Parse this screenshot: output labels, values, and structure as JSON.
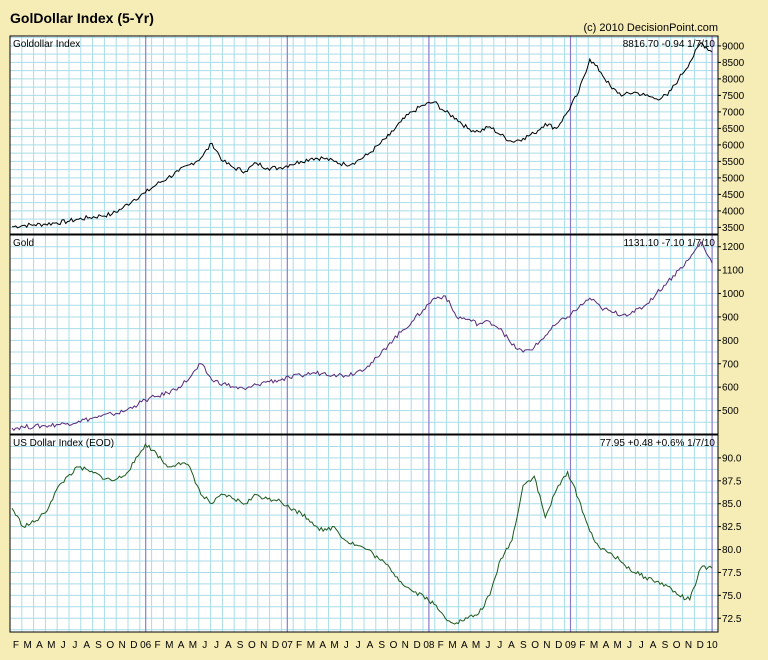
{
  "header": {
    "title": "GolDollar Index (5-Yr)",
    "copyright": "(c) 2010 DecisionPoint.com"
  },
  "colors": {
    "background": "#f6ecb6",
    "plot_bg": "#ffffff",
    "grid": "#a8dde8",
    "year_line": "#8a7ccc",
    "goldollar_line": "#000000",
    "gold_line": "#5a2a7a",
    "dollar_line": "#1e5a1e"
  },
  "x_axis": {
    "month_labels": [
      "F",
      "M",
      "A",
      "M",
      "J",
      "J",
      "A",
      "S",
      "O",
      "N",
      "D",
      "06",
      "F",
      "M",
      "A",
      "M",
      "J",
      "J",
      "A",
      "S",
      "O",
      "N",
      "D",
      "07",
      "F",
      "M",
      "A",
      "M",
      "J",
      "J",
      "A",
      "S",
      "O",
      "N",
      "D",
      "08",
      "F",
      "M",
      "A",
      "M",
      "J",
      "J",
      "A",
      "S",
      "O",
      "N",
      "D",
      "09",
      "F",
      "M",
      "A",
      "M",
      "J",
      "J",
      "A",
      "S",
      "O",
      "N",
      "D",
      "10"
    ]
  },
  "chart_data": [
    {
      "type": "line",
      "title": "Goldollar Index",
      "readout": "8816.70  -0.94  1/7/10",
      "ylim": [
        3300,
        9300
      ],
      "yticks": [
        "3500",
        "4000",
        "4500",
        "5000",
        "5500",
        "6000",
        "6500",
        "7000",
        "7500",
        "8000",
        "8500",
        "9000"
      ],
      "series": [
        {
          "values": [
            3520,
            3560,
            3580,
            3600,
            3640,
            3680,
            3750,
            3800,
            3850,
            3900,
            4100,
            4350,
            4550,
            4800,
            5000,
            5200,
            5400,
            5600,
            6050,
            5500,
            5300,
            5200,
            5450,
            5300,
            5300,
            5400,
            5500,
            5600,
            5600,
            5500,
            5400,
            5500,
            5700,
            6000,
            6300,
            6700,
            7000,
            7200,
            7300,
            7000,
            6800,
            6500,
            6400,
            6550,
            6300,
            6100,
            6200,
            6350,
            6650,
            6500,
            7000,
            7600,
            8600,
            8200,
            7700,
            7500,
            7600,
            7500,
            7400,
            7500,
            8000,
            8500,
            9100,
            8816
          ]
        }
      ]
    },
    {
      "type": "line",
      "title": "Gold",
      "readout": "1131.10  -7.10  1/7/10",
      "ylim": [
        400,
        1250
      ],
      "yticks": [
        "500",
        "600",
        "700",
        "800",
        "900",
        "1000",
        "1100",
        "1200"
      ],
      "series": [
        {
          "values": [
            425,
            430,
            432,
            435,
            440,
            445,
            455,
            465,
            475,
            485,
            495,
            520,
            545,
            560,
            575,
            600,
            640,
            700,
            630,
            615,
            600,
            590,
            610,
            625,
            630,
            640,
            650,
            660,
            660,
            655,
            650,
            665,
            690,
            730,
            790,
            835,
            880,
            930,
            980,
            990,
            900,
            890,
            870,
            880,
            850,
            780,
            750,
            770,
            820,
            870,
            900,
            940,
            980,
            940,
            920,
            910,
            920,
            950,
            1000,
            1050,
            1100,
            1150,
            1220,
            1131
          ]
        }
      ]
    },
    {
      "type": "line",
      "title": "US Dollar Index (EOD)",
      "readout": "77.95  +0.48  +0.6%  1/7/10",
      "ylim": [
        71.0,
        92.5
      ],
      "yticks": [
        "72.5",
        "75.0",
        "77.5",
        "80.0",
        "82.5",
        "85.0",
        "87.5",
        "90.0"
      ],
      "series": [
        {
          "values": [
            84.5,
            82.5,
            83.0,
            84.0,
            86.5,
            88.0,
            89.0,
            88.5,
            88.0,
            87.5,
            88.0,
            89.5,
            91.5,
            90.5,
            89.0,
            89.5,
            89.0,
            86.0,
            85.0,
            86.0,
            85.5,
            85.0,
            86.0,
            85.5,
            85.5,
            84.5,
            84.0,
            83.0,
            82.0,
            82.5,
            81.0,
            80.5,
            80.0,
            79.0,
            78.0,
            76.5,
            75.5,
            75.0,
            74.0,
            72.5,
            72.0,
            72.5,
            73.0,
            75.0,
            79.0,
            81.0,
            87.0,
            88.0,
            83.5,
            86.5,
            88.5,
            85.5,
            82.0,
            80.0,
            79.5,
            78.5,
            77.5,
            77.0,
            76.5,
            76.0,
            75.0,
            74.5,
            78.0,
            77.95
          ]
        }
      ]
    }
  ]
}
